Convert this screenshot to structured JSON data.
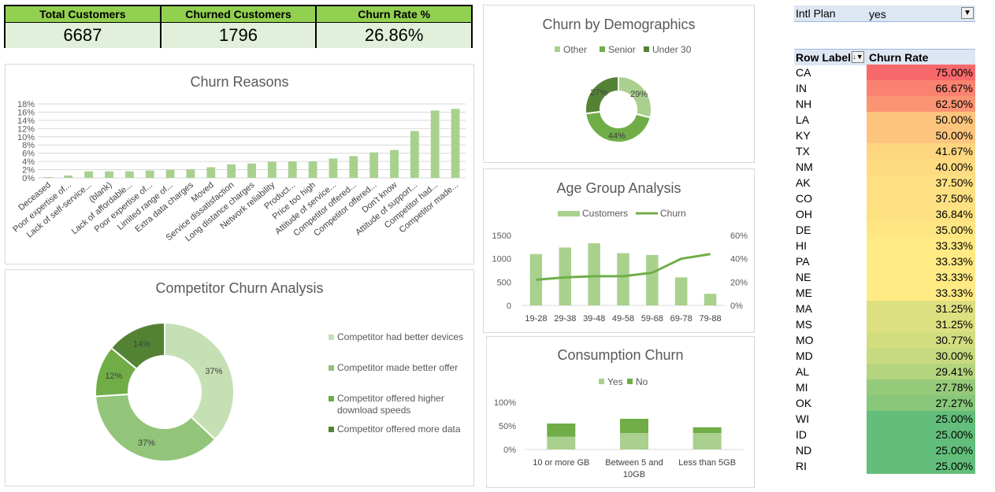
{
  "kpis": [
    {
      "label": "Total Customers",
      "value": "6687"
    },
    {
      "label": "Churned Customers",
      "value": "1796"
    },
    {
      "label": "Churn Rate %",
      "value": "26.86%"
    }
  ],
  "colors": {
    "green_dark": "#548235",
    "green_mid": "#70ad47",
    "green_light": "#a9d08e",
    "green_pale": "#c5e0b4",
    "bar": "#a9d18e",
    "kpi_header": "#92d050",
    "kpi_value": "#e2efda"
  },
  "filter": {
    "label": "Intl Plan",
    "value": "yes",
    "icon": "filter-icon"
  },
  "pivot": {
    "headers": [
      "Row Label",
      "Churn Rate"
    ],
    "rows": [
      {
        "state": "CA",
        "rate": "75.00%",
        "color": "#f8696b"
      },
      {
        "state": "IN",
        "rate": "66.67%",
        "color": "#f98370"
      },
      {
        "state": "NH",
        "rate": "62.50%",
        "color": "#fa9473"
      },
      {
        "state": "LA",
        "rate": "50.00%",
        "color": "#fdc47d"
      },
      {
        "state": "KY",
        "rate": "50.00%",
        "color": "#fdc47d"
      },
      {
        "state": "TX",
        "rate": "41.67%",
        "color": "#fed680"
      },
      {
        "state": "NM",
        "rate": "40.00%",
        "color": "#fedb81"
      },
      {
        "state": "AK",
        "rate": "37.50%",
        "color": "#fee082"
      },
      {
        "state": "CO",
        "rate": "37.50%",
        "color": "#fee082"
      },
      {
        "state": "OH",
        "rate": "36.84%",
        "color": "#fee282"
      },
      {
        "state": "DE",
        "rate": "35.00%",
        "color": "#fee683"
      },
      {
        "state": "HI",
        "rate": "33.33%",
        "color": "#ffea84"
      },
      {
        "state": "PA",
        "rate": "33.33%",
        "color": "#ffea84"
      },
      {
        "state": "NE",
        "rate": "33.33%",
        "color": "#ffea84"
      },
      {
        "state": "ME",
        "rate": "33.33%",
        "color": "#ffea84"
      },
      {
        "state": "MA",
        "rate": "31.25%",
        "color": "#dde081"
      },
      {
        "state": "MS",
        "rate": "31.25%",
        "color": "#dde081"
      },
      {
        "state": "MO",
        "rate": "30.77%",
        "color": "#d2dd80"
      },
      {
        "state": "MD",
        "rate": "30.00%",
        "color": "#c7da7f"
      },
      {
        "state": "AL",
        "rate": "29.41%",
        "color": "#b5d47e"
      },
      {
        "state": "MI",
        "rate": "27.78%",
        "color": "#95ca7b"
      },
      {
        "state": "OK",
        "rate": "27.27%",
        "color": "#88c67a"
      },
      {
        "state": "WI",
        "rate": "25.00%",
        "color": "#63be7b"
      },
      {
        "state": "ID",
        "rate": "25.00%",
        "color": "#63be7b"
      },
      {
        "state": "ND",
        "rate": "25.00%",
        "color": "#63be7b"
      },
      {
        "state": "RI",
        "rate": "25.00%",
        "color": "#63be7b"
      }
    ]
  },
  "chart_data": [
    {
      "id": "churn_reasons",
      "type": "bar",
      "title": "Churn Reasons",
      "categories": [
        "Deceased",
        "Poor expertise of...",
        "Lack of self-service...",
        "(blank)",
        "Lack of affordable...",
        "Poor expertise of...",
        "Limited range of...",
        "Extra data charges",
        "Moved",
        "Service dissatisfaction",
        "Long distance charges",
        "Network reliability",
        "Product...",
        "Price too high",
        "Attitude of service...",
        "Competitor offered...",
        "Competitor offered...",
        "Don't know",
        "Attitude of support...",
        "Competitor had...",
        "Competitor made..."
      ],
      "values": [
        0.2,
        0.6,
        1.6,
        1.6,
        1.6,
        1.8,
        2.0,
        2.1,
        2.6,
        3.3,
        3.5,
        3.9,
        4.0,
        4.0,
        4.7,
        5.3,
        6.2,
        6.8,
        11.4,
        16.4,
        16.8
      ],
      "yticks": [
        "0%",
        "2%",
        "4%",
        "6%",
        "8%",
        "10%",
        "12%",
        "14%",
        "16%",
        "18%"
      ],
      "ylim": [
        0,
        18
      ],
      "grid": true
    },
    {
      "id": "demographics",
      "type": "pie",
      "title": "Churn by Demographics",
      "labels": [
        "Other",
        "Senior",
        "Under 30"
      ],
      "values": [
        29,
        44,
        27
      ],
      "value_labels": [
        "29%",
        "44%",
        "27%"
      ],
      "colors": [
        "#a9d08e",
        "#70ad47",
        "#548235"
      ],
      "legend": "top"
    },
    {
      "id": "age_group",
      "type": "bar",
      "title": "Age Group Analysis",
      "categories": [
        "19-28",
        "29-38",
        "39-48",
        "49-58",
        "59-68",
        "69-78",
        "79-88"
      ],
      "series": [
        {
          "name": "Customers",
          "type": "bar",
          "values": [
            1100,
            1240,
            1330,
            1120,
            1080,
            600,
            250
          ]
        },
        {
          "name": "Churn",
          "type": "line",
          "axis": "secondary",
          "values": [
            22,
            24,
            25,
            25,
            28,
            40,
            44
          ]
        }
      ],
      "yticks": [
        "0",
        "500",
        "1000",
        "1500"
      ],
      "ylim": [
        0,
        1500
      ],
      "y2ticks": [
        "0%",
        "20%",
        "40%",
        "60%"
      ],
      "y2lim": [
        0,
        60
      ],
      "legend": "top"
    },
    {
      "id": "competitor",
      "type": "pie",
      "title": "Competitor Churn Analysis",
      "labels": [
        "Competitor had better devices",
        "Competitor made better offer",
        "Competitor offered higher download speeds",
        "Competitor offered more data"
      ],
      "values": [
        37,
        37,
        12,
        14
      ],
      "value_labels": [
        "37%",
        "37%",
        "12%",
        "14%"
      ],
      "colors": [
        "#c5e0b4",
        "#92c57a",
        "#70ad47",
        "#548235"
      ],
      "legend": "right"
    },
    {
      "id": "consumption",
      "type": "bar",
      "title": "Consumption Churn",
      "categories": [
        "10 or more GB",
        "Between 5 and 10GB",
        "Less than 5GB"
      ],
      "series": [
        {
          "name": "Yes",
          "values": [
            27,
            35,
            35
          ]
        },
        {
          "name": "No",
          "values": [
            28,
            30,
            12
          ]
        }
      ],
      "yticks": [
        "0%",
        "50%",
        "100%"
      ],
      "ylim": [
        0,
        100
      ],
      "legend": "top",
      "stacked": true
    }
  ]
}
